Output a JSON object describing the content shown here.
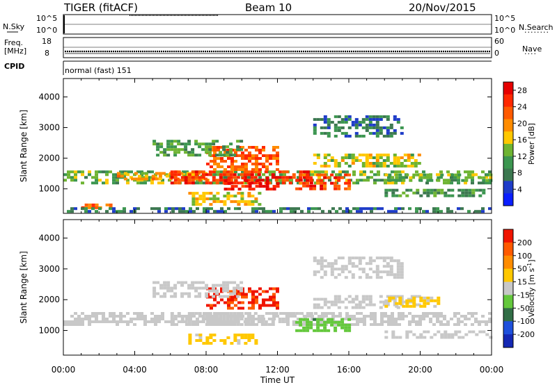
{
  "header": {
    "radar": "TIGER (fitACF)",
    "beam": "Beam 10",
    "date": "20/Nov/2015"
  },
  "top_panels": {
    "nsky_label": "N.Sky",
    "nsky_ticks": [
      "10^5",
      "10^0"
    ],
    "nsearch_label": "N.Search",
    "nsearch_ticks": [
      "10^5",
      "10^0"
    ],
    "freq_label": "Freq.",
    "freq_unit": "[MHz]",
    "freq_ticks": [
      "18",
      "8"
    ],
    "nave_label": "Nave",
    "nave_ticks": [
      "60",
      "0"
    ],
    "cpid_label": "CPID",
    "cpid_text": "normal (fast) 151"
  },
  "colors": {
    "power": [
      "#0a1eff",
      "#1e3cc8",
      "#3c7850",
      "#3c9650",
      "#6eb432",
      "#ffc800",
      "#ff8c00",
      "#ff5a00",
      "#ff2800",
      "#e60000"
    ],
    "velocity": [
      "#1428b4",
      "#1e50dc",
      "#326e46",
      "#64c83c",
      "#c8c8c8",
      "#ffc800",
      "#ff8c00",
      "#ff5a00",
      "#f01400"
    ]
  },
  "chart_data": [
    {
      "type": "heatmap",
      "name": "Power",
      "ylabel": "Slant Range [km]",
      "yticks": [
        1000,
        2000,
        3000,
        4000
      ],
      "ylim": [
        200,
        4600
      ],
      "xlim": [
        0,
        24
      ],
      "colorbar_label": "Power [dB]",
      "colorbar_ticks": [
        4,
        8,
        12,
        16,
        20,
        24,
        28
      ],
      "colorbar_range": [
        0,
        30
      ],
      "regions": [
        {
          "t": [
            0.0,
            24.0
          ],
          "r": [
            1150,
            1600
          ],
          "v": 12
        },
        {
          "t": [
            3.0,
            8.0
          ],
          "r": [
            1300,
            1550
          ],
          "v": 18
        },
        {
          "t": [
            6.0,
            14.0
          ],
          "r": [
            1200,
            1600
          ],
          "v": 25
        },
        {
          "t": [
            9.0,
            12.0
          ],
          "r": [
            1000,
            1400
          ],
          "v": 27
        },
        {
          "t": [
            8.0,
            12.0
          ],
          "r": [
            1600,
            2400
          ],
          "v": 22
        },
        {
          "t": [
            5.0,
            10.0
          ],
          "r": [
            2100,
            2600
          ],
          "v": 11
        },
        {
          "t": [
            13.0,
            16.0
          ],
          "r": [
            1000,
            1500
          ],
          "v": 24
        },
        {
          "t": [
            14.0,
            20.0
          ],
          "r": [
            1700,
            2150
          ],
          "v": 15
        },
        {
          "t": [
            18.0,
            24.0
          ],
          "r": [
            1300,
            1500
          ],
          "v": 13
        },
        {
          "t": [
            18.0,
            24.0
          ],
          "r": [
            800,
            1000
          ],
          "v": 10
        },
        {
          "t": [
            7.0,
            11.0
          ],
          "r": [
            500,
            900
          ],
          "v": 17
        },
        {
          "t": [
            1.0,
            3.0
          ],
          "r": [
            380,
            520
          ],
          "v": 22
        },
        {
          "t": [
            14.0,
            19.0
          ],
          "r": [
            2700,
            3400
          ],
          "v": 8
        },
        {
          "t": [
            0.0,
            24.0
          ],
          "r": [
            250,
            400
          ],
          "v": 7
        }
      ]
    },
    {
      "type": "heatmap",
      "name": "Velocity",
      "ylabel": "Slant Range [km]",
      "yticks": [
        1000,
        2000,
        3000,
        4000
      ],
      "ylim": [
        200,
        4600
      ],
      "xlim": [
        0,
        24
      ],
      "xticks": [
        "00:00",
        "04:00",
        "08:00",
        "12:00",
        "16:00",
        "20:00",
        "00:00"
      ],
      "xlabel": "Time UT",
      "colorbar_label": "Velocity [m s",
      "colorbar_unit_sup": "-1",
      "colorbar_unit_end": "]",
      "colorbar_ticks": [
        200,
        100,
        50,
        15,
        -15,
        -50,
        -100,
        -200
      ],
      "colorbar_range": [
        -250,
        250
      ],
      "regions": [
        {
          "t": [
            0.0,
            24.0
          ],
          "r": [
            1150,
            1600
          ],
          "v": 0
        },
        {
          "t": [
            6.0,
            14.0
          ],
          "r": [
            1200,
            1600
          ],
          "v": -10
        },
        {
          "t": [
            8.0,
            12.0
          ],
          "r": [
            1700,
            2400
          ],
          "v": 200
        },
        {
          "t": [
            13.0,
            16.0
          ],
          "r": [
            1000,
            1400
          ],
          "v": -70
        },
        {
          "t": [
            14.0,
            20.0
          ],
          "r": [
            1700,
            2150
          ],
          "v": 0
        },
        {
          "t": [
            7.0,
            11.0
          ],
          "r": [
            600,
            900
          ],
          "v": 40
        },
        {
          "t": [
            18.0,
            21.0
          ],
          "r": [
            1800,
            2100
          ],
          "v": 40
        },
        {
          "t": [
            18.0,
            24.0
          ],
          "r": [
            800,
            1000
          ],
          "v": 0
        },
        {
          "t": [
            5.0,
            10.0
          ],
          "r": [
            2100,
            2600
          ],
          "v": 0
        },
        {
          "t": [
            14.0,
            19.0
          ],
          "r": [
            2700,
            3400
          ],
          "v": 0
        }
      ]
    }
  ]
}
